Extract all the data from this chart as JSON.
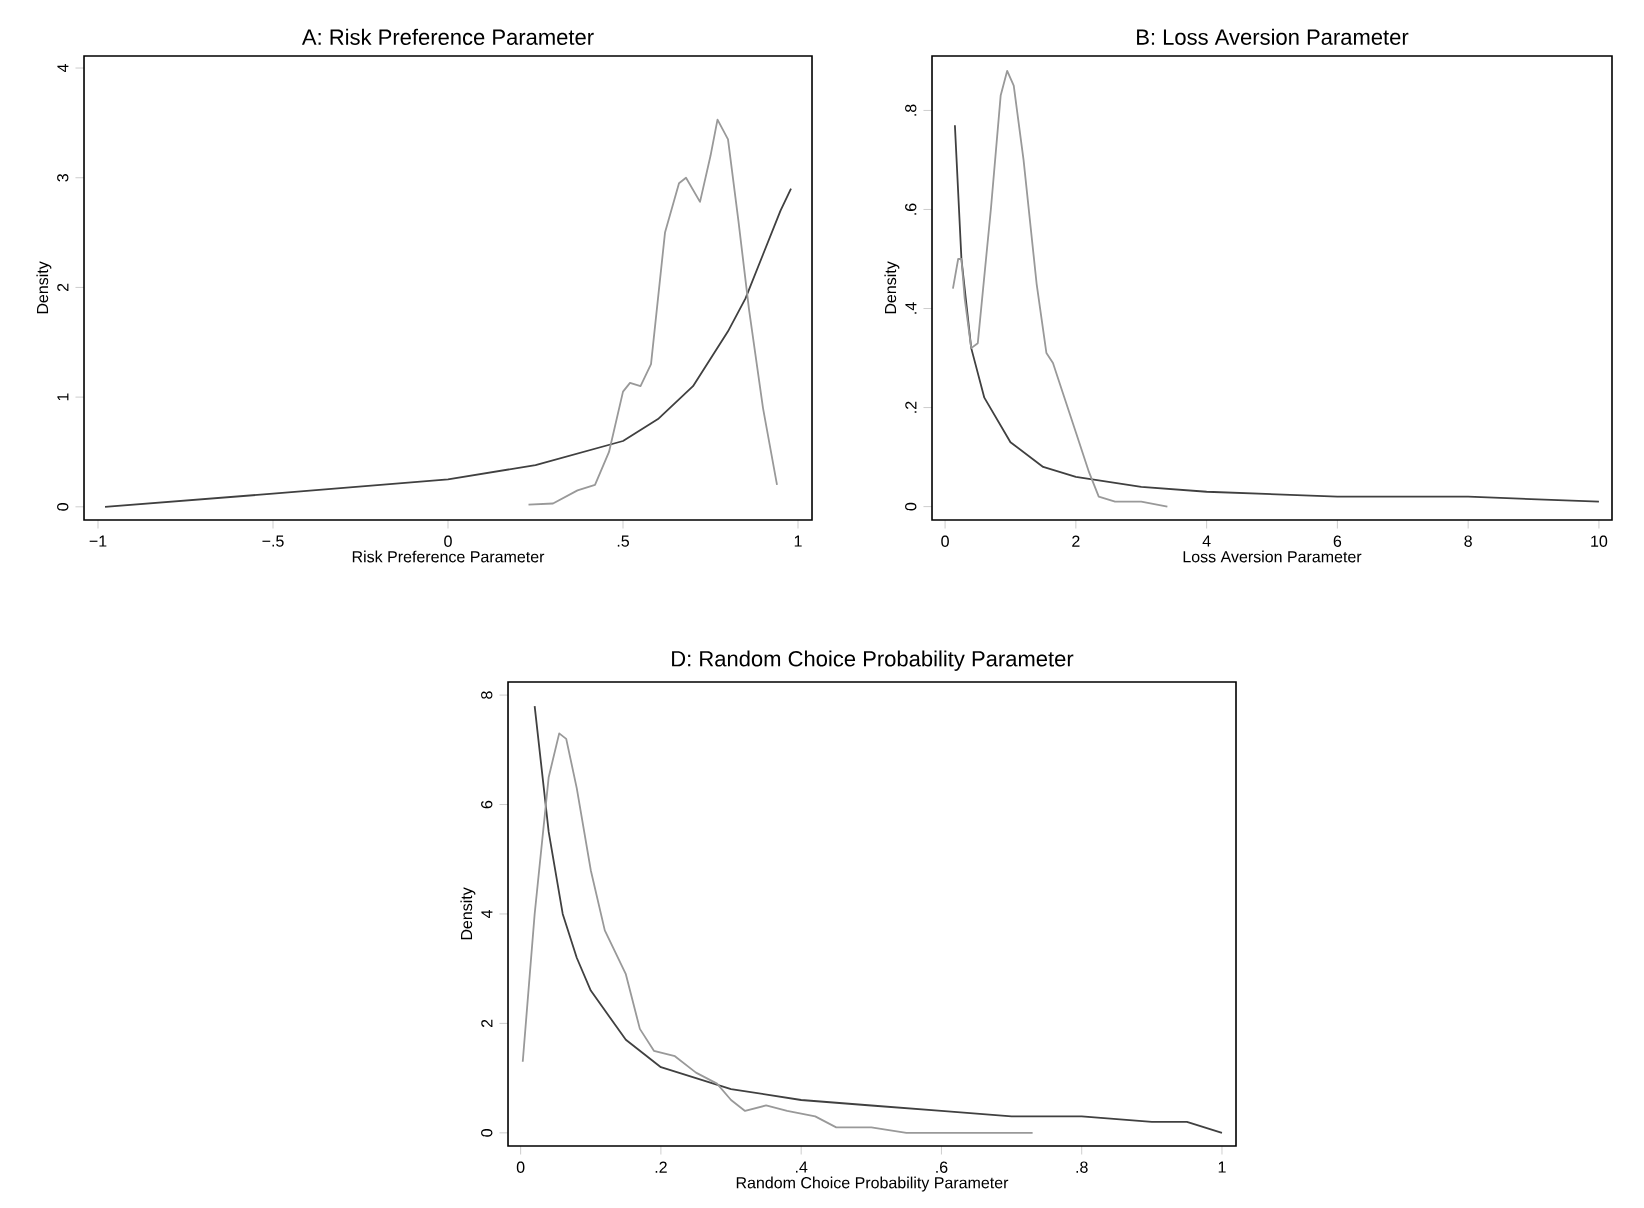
{
  "chart_data": [
    {
      "type": "line",
      "title": "A: Risk Preference Parameter",
      "xlabel": "Risk Preference Parameter",
      "ylabel": "Density",
      "xlim": [
        -1.04,
        1.04
      ],
      "ylim": [
        -0.12,
        4.11
      ],
      "xticks": [
        {
          "value": -1,
          "label": "−1"
        },
        {
          "value": -0.5,
          "label": "−.5"
        },
        0,
        {
          "value": 0.5,
          "label": ".5"
        },
        1
      ],
      "yticks": [
        0,
        1,
        2,
        3,
        4
      ],
      "series": [
        {
          "color": "#404040",
          "x": [
            -0.98,
            -0.5,
            0,
            0.25,
            0.5,
            0.6,
            0.7,
            0.8,
            0.85,
            0.9,
            0.95,
            0.98
          ],
          "values": [
            0,
            0.12,
            0.25,
            0.38,
            0.6,
            0.8,
            1.1,
            1.6,
            1.9,
            2.3,
            2.7,
            2.9
          ]
        },
        {
          "color": "#999999",
          "x": [
            0.23,
            0.3,
            0.37,
            0.42,
            0.46,
            0.5,
            0.52,
            0.55,
            0.58,
            0.62,
            0.66,
            0.68,
            0.72,
            0.75,
            0.77,
            0.8,
            0.83,
            0.86,
            0.9,
            0.94
          ],
          "values": [
            0.02,
            0.03,
            0.15,
            0.2,
            0.5,
            1.05,
            1.13,
            1.1,
            1.3,
            2.5,
            2.95,
            3.0,
            2.78,
            3.2,
            3.53,
            3.35,
            2.6,
            1.8,
            0.9,
            0.2
          ]
        }
      ]
    },
    {
      "type": "line",
      "title": "B: Loss Aversion Parameter",
      "xlabel": "Loss Aversion Parameter",
      "ylabel": "Density",
      "xlim": [
        -0.2,
        10.2
      ],
      "ylim": [
        -0.027,
        0.91
      ],
      "xticks": [
        0,
        2,
        4,
        6,
        8,
        10
      ],
      "yticks": [
        0,
        {
          "value": 0.2,
          "label": ".2"
        },
        {
          "value": 0.4,
          "label": ".4"
        },
        {
          "value": 0.6,
          "label": ".6"
        },
        {
          "value": 0.8,
          "label": ".8"
        }
      ],
      "series": [
        {
          "color": "#404040",
          "x": [
            0.15,
            0.25,
            0.4,
            0.6,
            1,
            1.5,
            2,
            3,
            4,
            6,
            8,
            10
          ],
          "values": [
            0.77,
            0.5,
            0.32,
            0.22,
            0.13,
            0.08,
            0.06,
            0.04,
            0.03,
            0.02,
            0.02,
            0.01
          ]
        },
        {
          "color": "#999999",
          "x": [
            0.12,
            0.2,
            0.25,
            0.3,
            0.4,
            0.5,
            0.7,
            0.85,
            0.95,
            1.05,
            1.2,
            1.4,
            1.55,
            1.65,
            1.8,
            2.0,
            2.2,
            2.35,
            2.6,
            3.0,
            3.4
          ],
          "values": [
            0.44,
            0.5,
            0.5,
            0.42,
            0.32,
            0.33,
            0.6,
            0.83,
            0.88,
            0.85,
            0.7,
            0.45,
            0.31,
            0.29,
            0.23,
            0.15,
            0.07,
            0.02,
            0.01,
            0.01,
            0.0
          ]
        }
      ]
    },
    {
      "type": "line",
      "title": "D: Random Choice Probability Parameter",
      "xlabel": "Random Choice Probability Parameter",
      "ylabel": "Density",
      "xlim": [
        -0.018,
        1.02
      ],
      "ylim": [
        -0.24,
        8.24
      ],
      "xticks": [
        0,
        {
          "value": 0.2,
          "label": ".2"
        },
        {
          "value": 0.4,
          "label": ".4"
        },
        {
          "value": 0.6,
          "label": ".6"
        },
        {
          "value": 0.8,
          "label": ".8"
        },
        1
      ],
      "yticks": [
        0,
        2,
        4,
        6,
        8
      ],
      "series": [
        {
          "color": "#404040",
          "x": [
            0.02,
            0.04,
            0.06,
            0.08,
            0.1,
            0.15,
            0.2,
            0.3,
            0.4,
            0.5,
            0.6,
            0.7,
            0.8,
            0.9,
            0.95,
            1.0
          ],
          "values": [
            7.8,
            5.5,
            4.0,
            3.2,
            2.6,
            1.7,
            1.2,
            0.8,
            0.6,
            0.5,
            0.4,
            0.3,
            0.3,
            0.2,
            0.2,
            0.0
          ]
        },
        {
          "color": "#999999",
          "x": [
            0.003,
            0.02,
            0.04,
            0.055,
            0.065,
            0.08,
            0.1,
            0.12,
            0.15,
            0.17,
            0.19,
            0.22,
            0.25,
            0.28,
            0.3,
            0.32,
            0.35,
            0.38,
            0.42,
            0.45,
            0.5,
            0.55,
            0.73
          ],
          "values": [
            1.3,
            4.0,
            6.5,
            7.3,
            7.2,
            6.3,
            4.8,
            3.7,
            2.9,
            1.9,
            1.5,
            1.4,
            1.1,
            0.9,
            0.6,
            0.4,
            0.5,
            0.4,
            0.3,
            0.1,
            0.1,
            0.0,
            0.0
          ]
        }
      ]
    }
  ]
}
